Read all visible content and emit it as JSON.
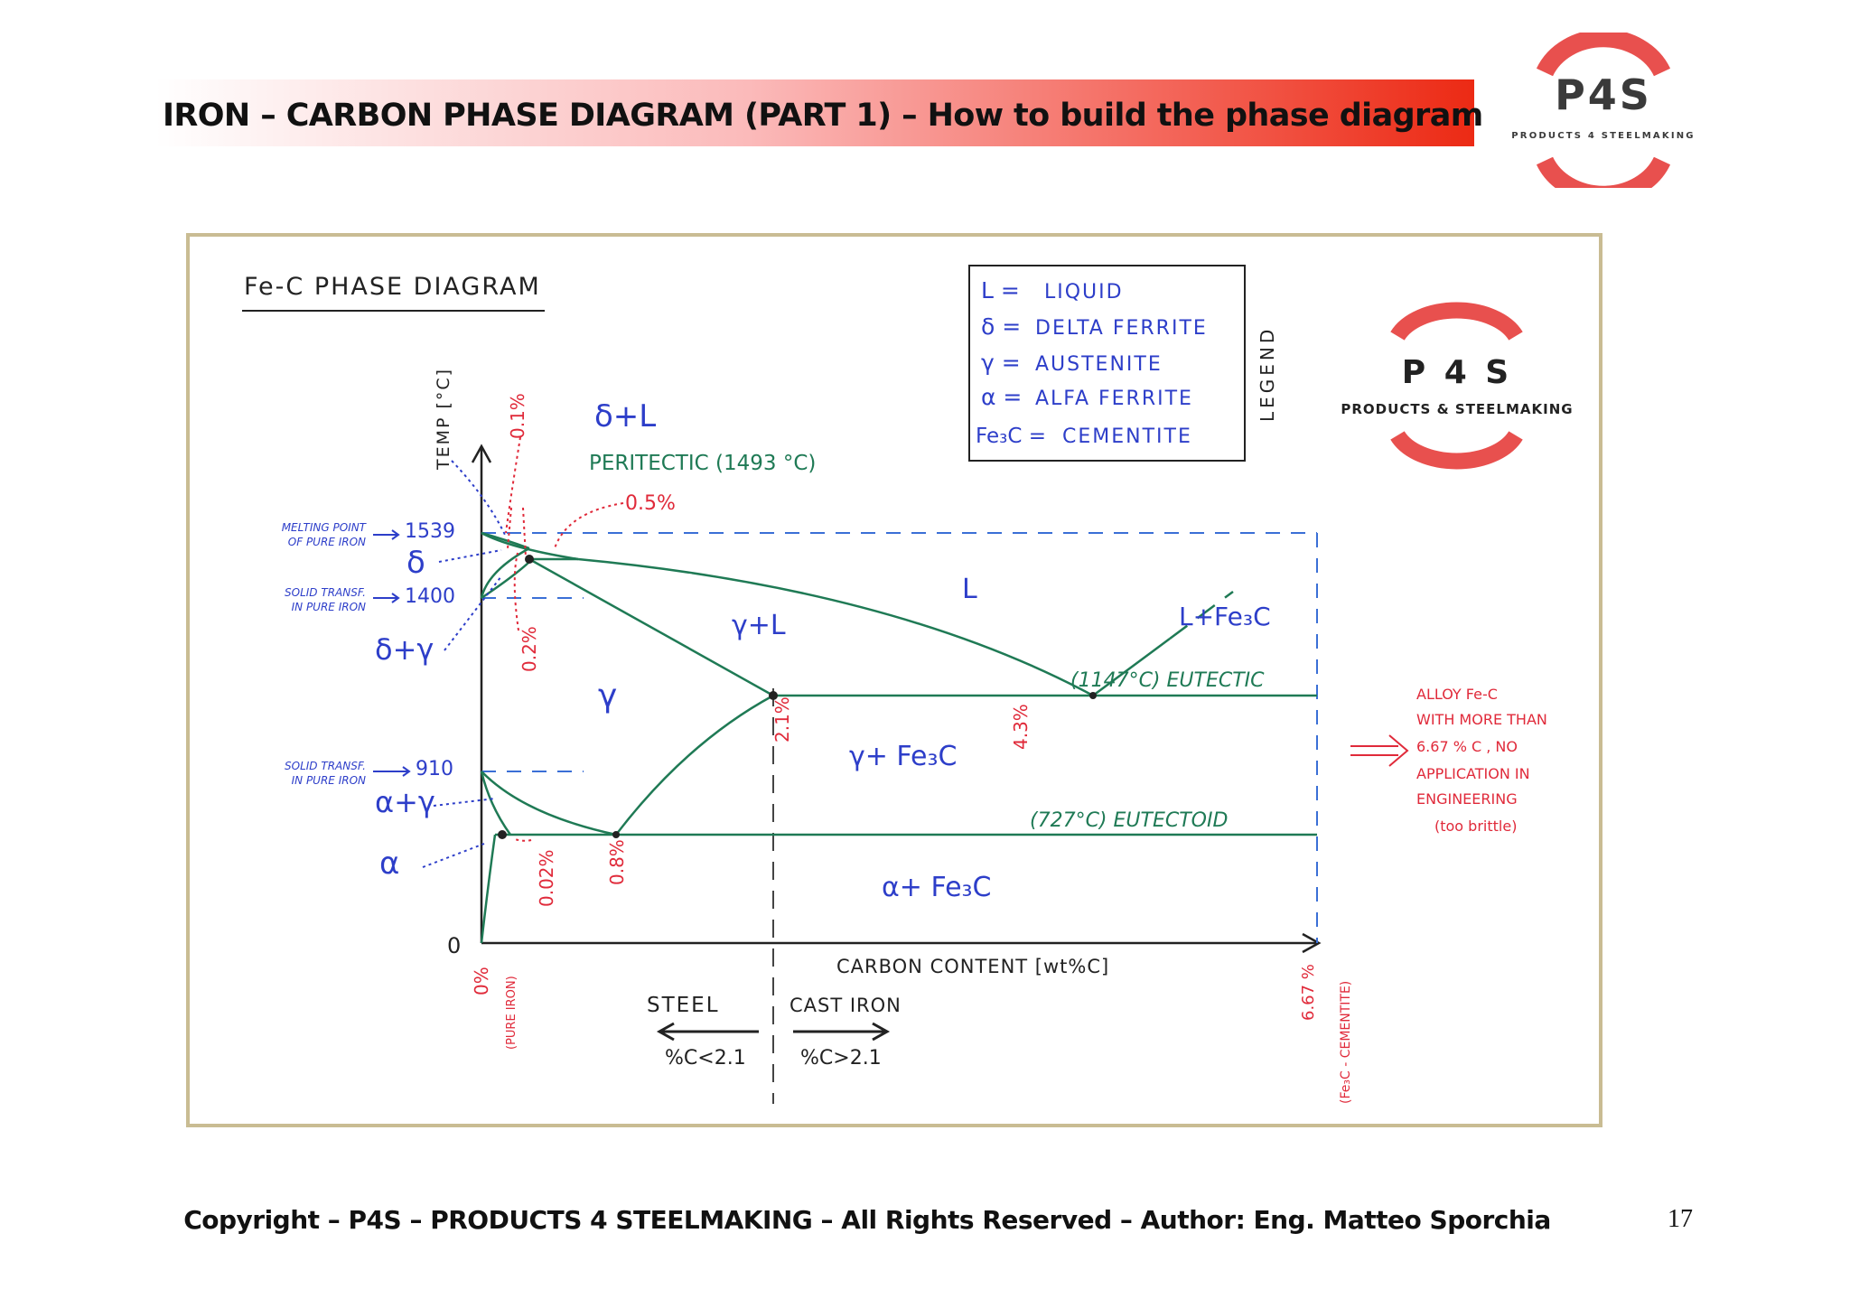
{
  "header": {
    "title": "IRON – CARBON PHASE DIAGRAM (PART 1) – How to build the phase diagram",
    "logo_text": "P4S",
    "logo_subtitle": "PRODUCTS 4 STEELMAKING"
  },
  "diagram": {
    "heading": "Fe-C PHASE DIAGRAM",
    "y_axis_label": "TEMP [°C]",
    "x_axis_label": "CARBON CONTENT [wt%C]",
    "origin_label": "0",
    "logo_text": "P 4 S",
    "logo_subtitle": "PRODUCTS & STEELMAKING",
    "legend_title": "LEGEND",
    "legend": [
      {
        "symbol": "L =",
        "text": "LIQUID"
      },
      {
        "symbol": "δ =",
        "text": "DELTA FERRITE"
      },
      {
        "symbol": "γ =",
        "text": "AUSTENITE"
      },
      {
        "symbol": "α =",
        "text": "ALFA FERRITE"
      },
      {
        "symbol": "Fe₃C =",
        "text": "CEMENTITE"
      }
    ],
    "temperatures": {
      "t1539": "1539",
      "t1400": "1400",
      "t910": "910"
    },
    "point_notes": {
      "melting_1": "MELTING POINT",
      "melting_2": "OF PURE IRON",
      "solid1_1": "SOLID TRANSF.",
      "solid1_2": "IN PURE IRON",
      "solid2_1": "SOLID TRANSF.",
      "solid2_2": "IN PURE IRON"
    },
    "phases": {
      "delta": "δ",
      "delta_gamma": "δ+γ",
      "alpha_gamma": "α+γ",
      "alpha": "α",
      "gamma": "γ",
      "delta_L": "δ+L",
      "gamma_L": "γ+L",
      "L": "L",
      "L_Fe3C": "L+Fe₃C",
      "gamma_Fe3C": "γ+ Fe₃C",
      "alpha_Fe3C": "α+ Fe₃C"
    },
    "reactions": {
      "peritectic": "PERITECTIC (1493 °C)",
      "eutectic": "(1147°C) EUTECTIC",
      "eutectoid": "(727°C) EUTECTOID"
    },
    "compositions": {
      "c01": "0.1%",
      "c05": "0.5%",
      "c02": "0.2%",
      "c21": "2.1%",
      "c43": "4.3%",
      "c002": "0.02%",
      "c08": "0.8%",
      "c0": "0%",
      "c0_note": "(PURE IRON)",
      "c667": "6.67 %",
      "c667_note": "(Fe₃C - CEMENTITE)"
    },
    "regions": {
      "steel": "STEEL",
      "steel_cond": "%C<2.1",
      "cast_iron": "CAST IRON",
      "cast_cond": "%C>2.1"
    },
    "side_note": [
      "ALLOY Fe-C",
      "WITH MORE THAN",
      "6.67 % C , NO",
      "APPLICATION IN",
      "ENGINEERING",
      "(too brittle)"
    ]
  },
  "footer": {
    "copyright": "Copyright – P4S – PRODUCTS 4 STEELMAKING – All Rights Reserved – Author: Eng. Matteo Sporchia",
    "page_number": "17"
  },
  "colors": {
    "accent_red": "#ec2a14",
    "line_green": "#1f7a55",
    "label_blue": "#2d3ec9",
    "note_red": "#e02a3a",
    "frame": "#c9bc93"
  }
}
